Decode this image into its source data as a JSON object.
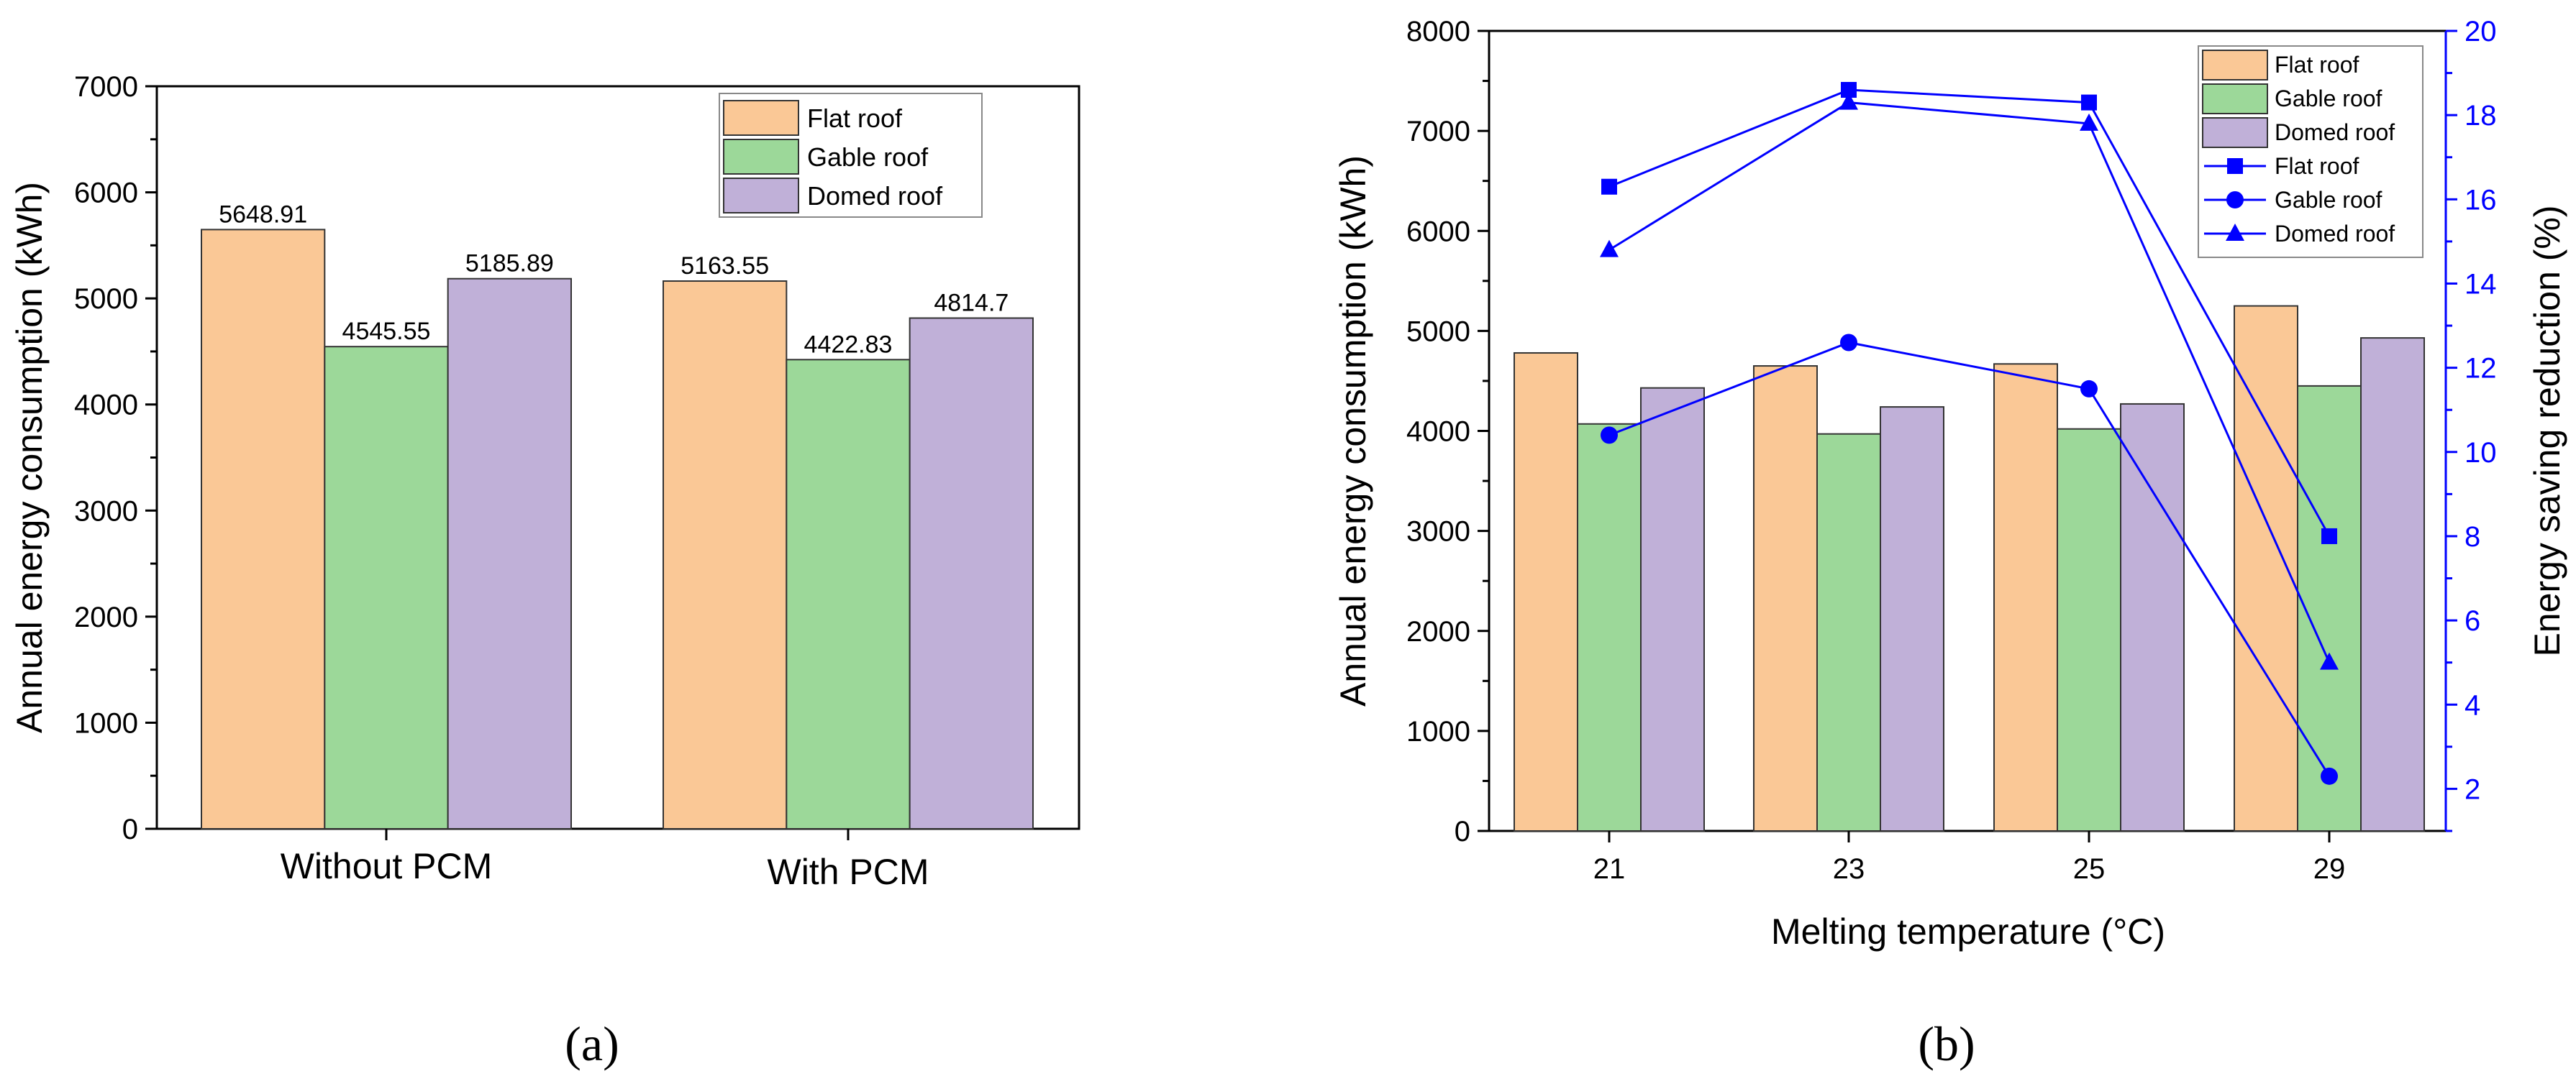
{
  "colors": {
    "flat": "#FAC896",
    "gable": "#9CD899",
    "domed": "#C0B0D8",
    "line": "#0000FF",
    "axis": "#000000"
  },
  "panel_labels": [
    "(a)",
    "(b)"
  ],
  "chart_data": [
    {
      "type": "bar",
      "ylabel": "Annual energy consumption (kWh)",
      "xlabel": "",
      "ylim": [
        0,
        7000
      ],
      "yticks": [
        "0",
        "1000",
        "2000",
        "3000",
        "4000",
        "5000",
        "6000",
        "7000"
      ],
      "categories": [
        "Without PCM",
        "With PCM"
      ],
      "series": [
        {
          "name": "Flat roof",
          "color_key": "flat",
          "values": [
            5648.91,
            5163.55
          ],
          "labels": [
            "5648.91",
            "5163.55"
          ]
        },
        {
          "name": "Gable roof",
          "color_key": "gable",
          "values": [
            4545.55,
            4422.83
          ],
          "labels": [
            "4545.55",
            "4422.83"
          ]
        },
        {
          "name": "Domed roof",
          "color_key": "domed",
          "values": [
            5185.89,
            4814.7
          ],
          "labels": [
            "5185.89",
            "4814.7"
          ]
        }
      ],
      "legend": [
        "Flat roof",
        "Gable roof",
        "Domed roof"
      ],
      "legend_position": "top-right"
    },
    {
      "type": "bar+line",
      "xlabel": "Melting temperature (°C)",
      "ylabel": "Annual energy consumption (kWh)",
      "y2label": "Energy saving reduction (%)",
      "ylim": [
        0,
        8000
      ],
      "yticks": [
        "0",
        "1000",
        "2000",
        "3000",
        "4000",
        "5000",
        "6000",
        "7000",
        "8000"
      ],
      "y2lim": [
        1,
        20
      ],
      "y2ticks": [
        "2",
        "4",
        "6",
        "8",
        "10",
        "12",
        "14",
        "16",
        "18",
        "20"
      ],
      "categories": [
        "21",
        "23",
        "25",
        "29"
      ],
      "bar_series": [
        {
          "name": "Flat roof",
          "color_key": "flat",
          "values": [
            4780,
            4650,
            4670,
            5250
          ]
        },
        {
          "name": "Gable roof",
          "color_key": "gable",
          "values": [
            4070,
            3970,
            4020,
            4450
          ]
        },
        {
          "name": "Domed roof",
          "color_key": "domed",
          "values": [
            4430,
            4240,
            4270,
            4930
          ]
        }
      ],
      "line_series": [
        {
          "name": "Flat roof",
          "marker": "square",
          "values": [
            16.3,
            18.6,
            18.3,
            8.0
          ]
        },
        {
          "name": "Gable roof",
          "marker": "circle",
          "values": [
            10.4,
            12.6,
            11.5,
            2.3
          ]
        },
        {
          "name": "Domed roof",
          "marker": "triangle",
          "values": [
            14.8,
            18.3,
            17.8,
            5.0
          ]
        }
      ],
      "legend": [
        "Flat roof",
        "Gable roof",
        "Domed roof",
        "Flat roof",
        "Gable roof",
        "Domed roof"
      ],
      "legend_position": "top-right"
    }
  ]
}
